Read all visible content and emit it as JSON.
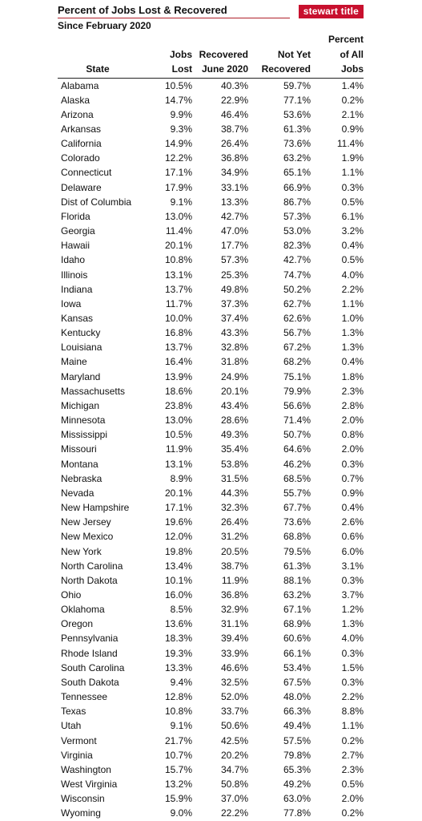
{
  "header": {
    "title": "Percent of Jobs Lost & Recovered",
    "subtitle": "Since February 2020",
    "logo_text": "stewart title"
  },
  "columns": {
    "state": [
      "State"
    ],
    "jobs_lost": [
      "Jobs",
      "Lost"
    ],
    "recovered": [
      "Recovered",
      "June 2020"
    ],
    "not_yet": [
      "Not Yet",
      "Recovered"
    ],
    "percent_all": [
      "Percent",
      "of All",
      "Jobs"
    ]
  },
  "rows": [
    [
      "Alabama",
      "10.5%",
      "40.3%",
      "59.7%",
      "1.4%"
    ],
    [
      "Alaska",
      "14.7%",
      "22.9%",
      "77.1%",
      "0.2%"
    ],
    [
      "Arizona",
      "9.9%",
      "46.4%",
      "53.6%",
      "2.1%"
    ],
    [
      "Arkansas",
      "9.3%",
      "38.7%",
      "61.3%",
      "0.9%"
    ],
    [
      "California",
      "14.9%",
      "26.4%",
      "73.6%",
      "11.4%"
    ],
    [
      "Colorado",
      "12.2%",
      "36.8%",
      "63.2%",
      "1.9%"
    ],
    [
      "Connecticut",
      "17.1%",
      "34.9%",
      "65.1%",
      "1.1%"
    ],
    [
      "Delaware",
      "17.9%",
      "33.1%",
      "66.9%",
      "0.3%"
    ],
    [
      "Dist of Columbia",
      "9.1%",
      "13.3%",
      "86.7%",
      "0.5%"
    ],
    [
      "Florida",
      "13.0%",
      "42.7%",
      "57.3%",
      "6.1%"
    ],
    [
      "Georgia",
      "11.4%",
      "47.0%",
      "53.0%",
      "3.2%"
    ],
    [
      "Hawaii",
      "20.1%",
      "17.7%",
      "82.3%",
      "0.4%"
    ],
    [
      "Idaho",
      "10.8%",
      "57.3%",
      "42.7%",
      "0.5%"
    ],
    [
      "Illinois",
      "13.1%",
      "25.3%",
      "74.7%",
      "4.0%"
    ],
    [
      "Indiana",
      "13.7%",
      "49.8%",
      "50.2%",
      "2.2%"
    ],
    [
      "Iowa",
      "11.7%",
      "37.3%",
      "62.7%",
      "1.1%"
    ],
    [
      "Kansas",
      "10.0%",
      "37.4%",
      "62.6%",
      "1.0%"
    ],
    [
      "Kentucky",
      "16.8%",
      "43.3%",
      "56.7%",
      "1.3%"
    ],
    [
      "Louisiana",
      "13.7%",
      "32.8%",
      "67.2%",
      "1.3%"
    ],
    [
      "Maine",
      "16.4%",
      "31.8%",
      "68.2%",
      "0.4%"
    ],
    [
      "Maryland",
      "13.9%",
      "24.9%",
      "75.1%",
      "1.8%"
    ],
    [
      "Massachusetts",
      "18.6%",
      "20.1%",
      "79.9%",
      "2.3%"
    ],
    [
      "Michigan",
      "23.8%",
      "43.4%",
      "56.6%",
      "2.8%"
    ],
    [
      "Minnesota",
      "13.0%",
      "28.6%",
      "71.4%",
      "2.0%"
    ],
    [
      "Mississippi",
      "10.5%",
      "49.3%",
      "50.7%",
      "0.8%"
    ],
    [
      "Missouri",
      "11.9%",
      "35.4%",
      "64.6%",
      "2.0%"
    ],
    [
      "Montana",
      "13.1%",
      "53.8%",
      "46.2%",
      "0.3%"
    ],
    [
      "Nebraska",
      "8.9%",
      "31.5%",
      "68.5%",
      "0.7%"
    ],
    [
      "Nevada",
      "20.1%",
      "44.3%",
      "55.7%",
      "0.9%"
    ],
    [
      "New Hampshire",
      "17.1%",
      "32.3%",
      "67.7%",
      "0.4%"
    ],
    [
      "New Jersey",
      "19.6%",
      "26.4%",
      "73.6%",
      "2.6%"
    ],
    [
      "New Mexico",
      "12.0%",
      "31.2%",
      "68.8%",
      "0.6%"
    ],
    [
      "New York",
      "19.8%",
      "20.5%",
      "79.5%",
      "6.0%"
    ],
    [
      "North Carolina",
      "13.4%",
      "38.7%",
      "61.3%",
      "3.1%"
    ],
    [
      "North Dakota",
      "10.1%",
      "11.9%",
      "88.1%",
      "0.3%"
    ],
    [
      "Ohio",
      "16.0%",
      "36.8%",
      "63.2%",
      "3.7%"
    ],
    [
      "Oklahoma",
      "8.5%",
      "32.9%",
      "67.1%",
      "1.2%"
    ],
    [
      "Oregon",
      "13.6%",
      "31.1%",
      "68.9%",
      "1.3%"
    ],
    [
      "Pennsylvania",
      "18.3%",
      "39.4%",
      "60.6%",
      "4.0%"
    ],
    [
      "Rhode Island",
      "19.3%",
      "33.9%",
      "66.1%",
      "0.3%"
    ],
    [
      "South Carolina",
      "13.3%",
      "46.6%",
      "53.4%",
      "1.5%"
    ],
    [
      "South Dakota",
      "9.4%",
      "32.5%",
      "67.5%",
      "0.3%"
    ],
    [
      "Tennessee",
      "12.8%",
      "52.0%",
      "48.0%",
      "2.2%"
    ],
    [
      "Texas",
      "10.8%",
      "33.7%",
      "66.3%",
      "8.8%"
    ],
    [
      "Utah",
      "9.1%",
      "50.6%",
      "49.4%",
      "1.1%"
    ],
    [
      "Vermont",
      "21.7%",
      "42.5%",
      "57.5%",
      "0.2%"
    ],
    [
      "Virginia",
      "10.7%",
      "20.2%",
      "79.8%",
      "2.7%"
    ],
    [
      "Washington",
      "15.7%",
      "34.7%",
      "65.3%",
      "2.3%"
    ],
    [
      "West Virginia",
      "13.2%",
      "50.8%",
      "49.2%",
      "0.5%"
    ],
    [
      "Wisconsin",
      "15.9%",
      "37.0%",
      "63.0%",
      "2.0%"
    ],
    [
      "Wyoming",
      "9.0%",
      "22.2%",
      "77.8%",
      "0.2%"
    ]
  ]
}
